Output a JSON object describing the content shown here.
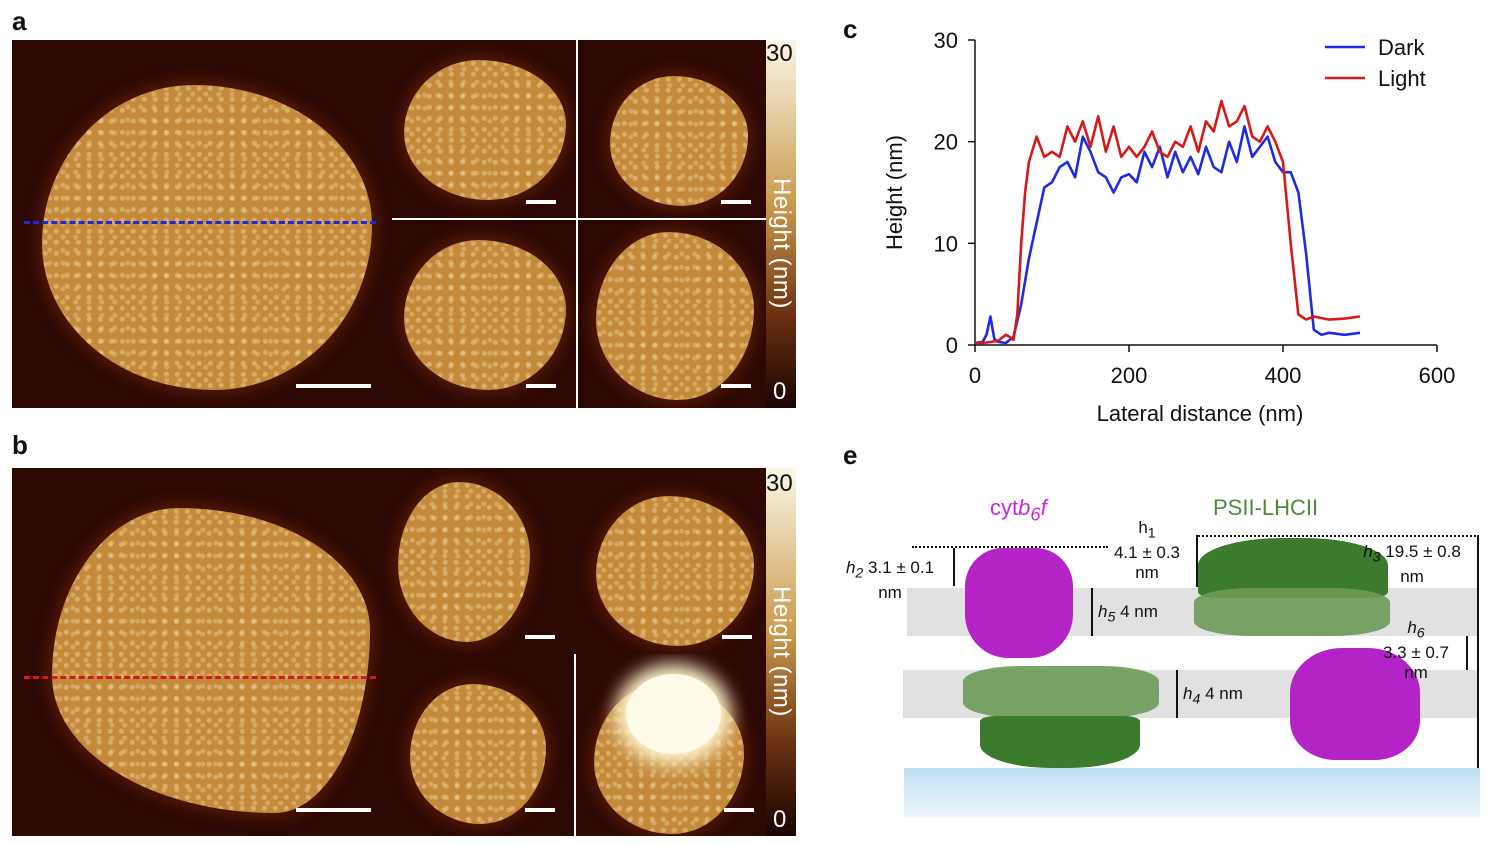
{
  "panels": {
    "a": "a",
    "b": "b",
    "c": "c",
    "e": "e"
  },
  "colorbar": {
    "max": "30",
    "min": "0",
    "title": "Height (nm)"
  },
  "chart_data": {
    "type": "line",
    "xlabel": "Lateral distance (nm)",
    "ylabel": "Height (nm)",
    "xlim": [
      0,
      600
    ],
    "ylim": [
      0,
      30
    ],
    "xticks": [
      "0",
      "200",
      "400",
      "600"
    ],
    "yticks": [
      "0",
      "10",
      "20",
      "30"
    ],
    "legend_position": "top-right",
    "grid": false,
    "series": [
      {
        "name": "Dark",
        "color": "#1f2be0",
        "x": [
          0,
          10,
          15,
          20,
          25,
          30,
          40,
          50,
          60,
          70,
          80,
          90,
          100,
          110,
          120,
          130,
          140,
          150,
          160,
          170,
          180,
          190,
          200,
          210,
          220,
          230,
          240,
          250,
          260,
          270,
          280,
          290,
          300,
          310,
          320,
          330,
          340,
          350,
          360,
          370,
          380,
          390,
          400,
          410,
          420,
          430,
          440,
          450,
          460,
          480,
          500
        ],
        "y": [
          0.2,
          0.3,
          1.0,
          2.8,
          0.6,
          0.3,
          0.2,
          0.8,
          4.0,
          8.5,
          12.0,
          15.5,
          16.0,
          17.5,
          18.0,
          16.5,
          20.5,
          19.0,
          17.0,
          16.5,
          15.0,
          16.5,
          16.8,
          16.0,
          19.0,
          17.5,
          19.5,
          16.5,
          19.0,
          17.0,
          18.5,
          16.8,
          19.5,
          17.5,
          17.0,
          20.0,
          18.0,
          21.5,
          18.5,
          19.5,
          20.5,
          18.0,
          17.0,
          17.0,
          15.0,
          9.0,
          1.5,
          1.0,
          1.2,
          1.0,
          1.2
        ]
      },
      {
        "name": "Light",
        "color": "#d41a1a",
        "x": [
          0,
          10,
          20,
          30,
          40,
          45,
          50,
          55,
          60,
          65,
          70,
          80,
          90,
          100,
          110,
          120,
          130,
          140,
          150,
          160,
          170,
          180,
          190,
          200,
          210,
          220,
          230,
          240,
          250,
          260,
          270,
          280,
          290,
          300,
          310,
          320,
          330,
          340,
          350,
          360,
          370,
          380,
          390,
          400,
          410,
          420,
          430,
          440,
          460,
          480,
          500
        ],
        "y": [
          0.2,
          0.2,
          0.3,
          0.4,
          1.0,
          0.8,
          0.5,
          3.0,
          10.0,
          15.0,
          18.0,
          20.5,
          18.5,
          19.0,
          18.5,
          21.5,
          20.0,
          22.0,
          19.5,
          22.5,
          19.0,
          21.5,
          18.5,
          19.5,
          18.5,
          19.5,
          21.0,
          19.0,
          18.5,
          20.0,
          19.5,
          21.5,
          19.0,
          22.0,
          21.0,
          24.0,
          21.5,
          22.0,
          23.5,
          20.5,
          20.0,
          21.5,
          20.0,
          18.0,
          10.0,
          3.0,
          2.5,
          2.8,
          2.5,
          2.6,
          2.8
        ]
      }
    ]
  },
  "diagram": {
    "cyt_label_main": "cyt",
    "cyt_label_b": "b",
    "cyt_label_sub": "6",
    "cyt_label_f": "f",
    "psii_label": "PSII-LHCII",
    "h1_label": "h",
    "h1_sub": "1",
    "h1_value": "4.1 ± 0.3",
    "h1_unit": "nm",
    "h2_label": "h",
    "h2_sub": "2",
    "h2_value": "3.1 ± 0.1",
    "h2_unit": "nm",
    "h3_label": "h",
    "h3_sub": "3",
    "h3_value": "19.5 ± 0.8",
    "h3_unit": "nm",
    "h4_label": "h",
    "h4_sub": "4",
    "h4_value": "4 nm",
    "h5_label": "h",
    "h5_sub": "5",
    "h5_value": "4 nm",
    "h6_label": "h",
    "h6_sub": "6",
    "h6_value": "3.3 ± 0.7",
    "h6_unit": "nm"
  }
}
